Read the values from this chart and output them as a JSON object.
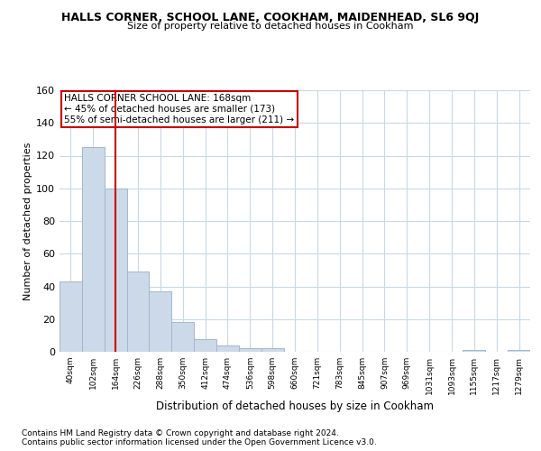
{
  "title": "HALLS CORNER, SCHOOL LANE, COOKHAM, MAIDENHEAD, SL6 9QJ",
  "subtitle": "Size of property relative to detached houses in Cookham",
  "xlabel": "Distribution of detached houses by size in Cookham",
  "ylabel": "Number of detached properties",
  "bar_color": "#ccd9e8",
  "bar_edge_color": "#a0b8cc",
  "grid_color": "#c8d8e8",
  "categories": [
    "40sqm",
    "102sqm",
    "164sqm",
    "226sqm",
    "288sqm",
    "350sqm",
    "412sqm",
    "474sqm",
    "536sqm",
    "598sqm",
    "660sqm",
    "721sqm",
    "783sqm",
    "845sqm",
    "907sqm",
    "969sqm",
    "1031sqm",
    "1093sqm",
    "1155sqm",
    "1217sqm",
    "1279sqm"
  ],
  "values": [
    43,
    125,
    100,
    49,
    37,
    18,
    8,
    4,
    2,
    2,
    0,
    0,
    0,
    0,
    0,
    0,
    0,
    0,
    1,
    0,
    1
  ],
  "vline_x": 2,
  "vline_color": "#cc0000",
  "annotation_title": "HALLS CORNER SCHOOL LANE: 168sqm",
  "annotation_line1": "← 45% of detached houses are smaller (173)",
  "annotation_line2": "55% of semi-detached houses are larger (211) →",
  "annotation_box_color": "#ffffff",
  "annotation_border_color": "#cc0000",
  "ylim": [
    0,
    160
  ],
  "yticks": [
    0,
    20,
    40,
    60,
    80,
    100,
    120,
    140,
    160
  ],
  "footnote1": "Contains HM Land Registry data © Crown copyright and database right 2024.",
  "footnote2": "Contains public sector information licensed under the Open Government Licence v3.0."
}
